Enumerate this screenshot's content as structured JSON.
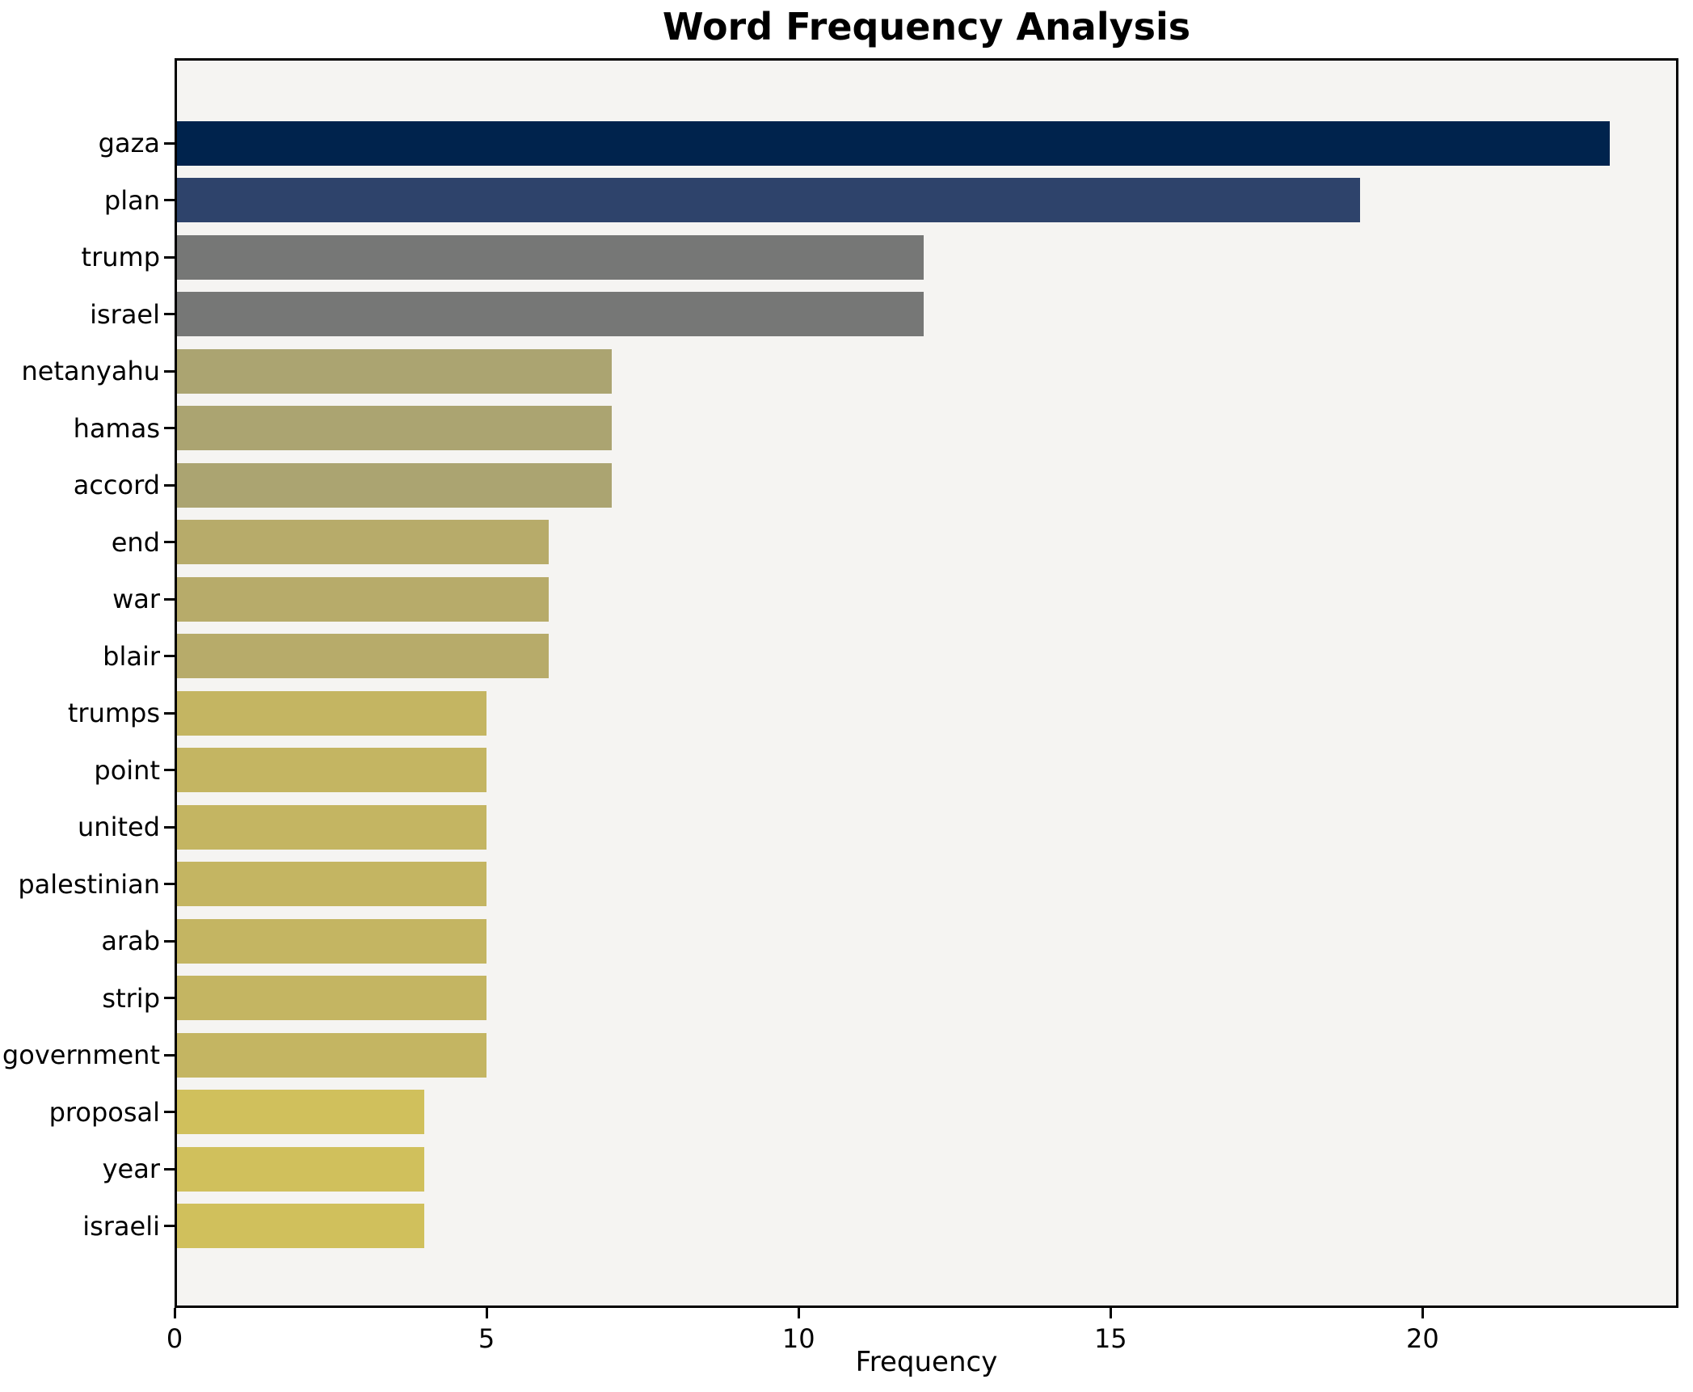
{
  "chart_data": {
    "type": "bar",
    "orientation": "horizontal",
    "title": "Word Frequency Analysis",
    "xlabel": "Frequency",
    "ylabel": "",
    "categories": [
      "gaza",
      "plan",
      "trump",
      "israel",
      "netanyahu",
      "hamas",
      "accord",
      "end",
      "war",
      "blair",
      "trumps",
      "point",
      "united",
      "palestinian",
      "arab",
      "strip",
      "government",
      "proposal",
      "year",
      "israeli"
    ],
    "values": [
      23,
      19,
      12,
      12,
      7,
      7,
      7,
      6,
      6,
      6,
      5,
      5,
      5,
      5,
      5,
      5,
      5,
      4,
      4,
      4
    ],
    "bar_colors": [
      "#00234d",
      "#2e436b",
      "#767776",
      "#767776",
      "#aba471",
      "#aba471",
      "#aba471",
      "#b7ab6a",
      "#b7ab6a",
      "#b7ab6a",
      "#c4b562",
      "#c4b562",
      "#c4b562",
      "#c4b562",
      "#c4b562",
      "#c4b562",
      "#c4b562",
      "#d0c05c",
      "#d0c05c",
      "#d0c05c"
    ],
    "x_ticks": [
      0,
      5,
      10,
      15,
      20
    ],
    "xlim": [
      0,
      24.1
    ],
    "grid": false,
    "legend_position": "none",
    "plot_background": "#f5f4f2",
    "figure_background": "#ffffff"
  }
}
